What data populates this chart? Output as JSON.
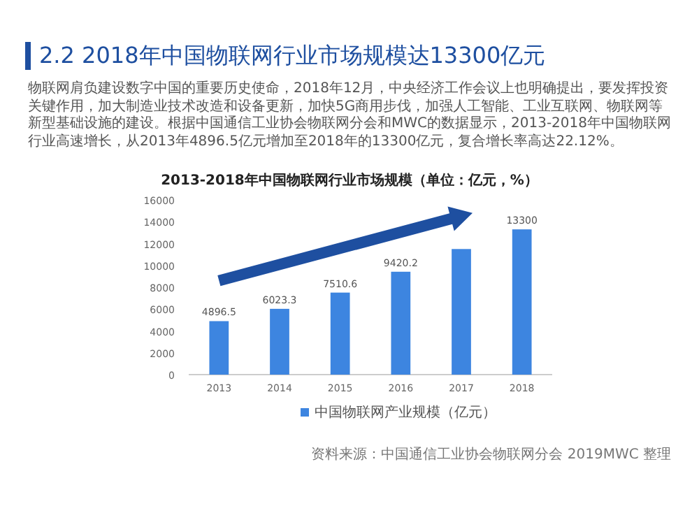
{
  "chart_data": {
    "type": "bar",
    "title": "2.2 2018年中国物联网行业市场规模达13300亿元",
    "subtitle": "2013-2018年中国物联网行业市场规模（单位：亿元，%）",
    "annotations": [
      "物联网肩负建设数字中国的重要历史使命，2018年12月，中央经济工作会议上也明确提出，要发挥投资关键作用，加大制造业技术改造和设备更新，加快5G商用步伐，加强人工智能、工业互联网、物联网等新型基础设施的建设。根据中国通信工业协会物联网分会和MWC的数据显示，2013-2018年中国物联网行业高速增长，从2013年4896.5亿元增加至2018年的13300亿元，复合增长率高达22.12%。",
      "资料来源：中国通信工业协会物联网分会 2019MWC 整理"
    ],
    "categories": [
      "2013",
      "2014",
      "2015",
      "2016",
      "2017",
      "2018"
    ],
    "series": [
      {
        "name": "中国物联网产业规模（亿元）",
        "color": "#3d85e0",
        "values": [
          4896.5,
          6023.3,
          7510.6,
          9420.2,
          11500,
          13300
        ]
      }
    ],
    "value_labels": [
      "4896.5",
      "6023.3",
      "7510.6",
      "9420.2",
      null,
      "13300"
    ],
    "ylim": [
      0,
      16000
    ],
    "yticks": [
      0,
      2000,
      4000,
      6000,
      8000,
      10000,
      12000,
      14000,
      16000
    ],
    "grid": false,
    "legend": "bottom"
  }
}
